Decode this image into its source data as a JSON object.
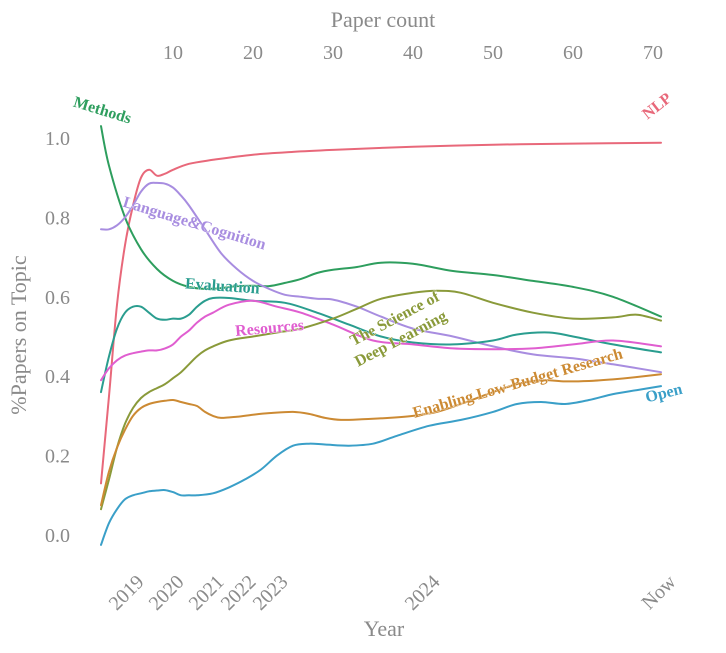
{
  "chart_data": {
    "type": "line",
    "top_axis": {
      "label": "Paper count",
      "ticks": [
        {
          "value": 10,
          "label": "10"
        },
        {
          "value": 20,
          "label": "20"
        },
        {
          "value": 30,
          "label": "30"
        },
        {
          "value": 40,
          "label": "40"
        },
        {
          "value": 50,
          "label": "50"
        },
        {
          "value": 60,
          "label": "60"
        },
        {
          "value": 70,
          "label": "70"
        }
      ]
    },
    "xlabel": "Year",
    "x_range": [
      1,
      71.5
    ],
    "x_ticks": [
      {
        "value": 5,
        "label": "2019"
      },
      {
        "value": 10,
        "label": "2020"
      },
      {
        "value": 15,
        "label": "2021"
      },
      {
        "value": 19,
        "label": "2022"
      },
      {
        "value": 23,
        "label": "2023"
      },
      {
        "value": 42,
        "label": "2024"
      },
      {
        "value": 71.5,
        "label": "Now"
      }
    ],
    "ylabel": "%Papers on Topic",
    "ylim": [
      -0.1,
      1.12
    ],
    "y_ticks": [
      {
        "value": 0.0,
        "label": "0.0"
      },
      {
        "value": 0.2,
        "label": "0.2"
      },
      {
        "value": 0.4,
        "label": "0.4"
      },
      {
        "value": 0.6,
        "label": "0.6"
      },
      {
        "value": 0.8,
        "label": "0.8"
      },
      {
        "value": 1.0,
        "label": "1.0"
      }
    ],
    "grid": false,
    "legend": "inline labels",
    "series": [
      {
        "name": "NLP",
        "color": "#e8687a",
        "x": [
          1,
          2,
          3,
          4,
          5,
          6,
          7,
          8,
          9,
          10,
          12,
          15,
          20,
          25,
          30,
          40,
          50,
          60,
          71
        ],
        "y": [
          0.13,
          0.35,
          0.58,
          0.73,
          0.83,
          0.9,
          0.92,
          0.905,
          0.91,
          0.92,
          0.935,
          0.945,
          0.958,
          0.965,
          0.97,
          0.978,
          0.983,
          0.986,
          0.988
        ]
      },
      {
        "name": "Methods",
        "color": "#2e9e5e",
        "x": [
          1,
          2,
          4,
          6,
          8,
          10,
          12,
          14,
          16,
          18,
          20,
          22,
          24,
          26,
          28,
          30,
          33,
          36,
          40,
          45,
          50,
          55,
          60,
          65,
          71
        ],
        "y": [
          1.03,
          0.93,
          0.8,
          0.72,
          0.67,
          0.64,
          0.625,
          0.62,
          0.622,
          0.627,
          0.628,
          0.627,
          0.635,
          0.645,
          0.66,
          0.668,
          0.675,
          0.686,
          0.683,
          0.665,
          0.655,
          0.64,
          0.625,
          0.6,
          0.55
        ]
      },
      {
        "name": "Language&Cognition",
        "color": "#a88de0",
        "x": [
          1,
          2,
          3,
          4,
          5,
          6,
          7,
          8,
          9,
          10,
          11,
          12,
          14,
          16,
          18,
          20,
          22,
          24,
          26,
          28,
          30,
          33,
          36,
          40,
          45,
          50,
          55,
          60,
          65,
          71
        ],
        "y": [
          0.77,
          0.77,
          0.78,
          0.8,
          0.83,
          0.865,
          0.885,
          0.887,
          0.885,
          0.875,
          0.855,
          0.83,
          0.77,
          0.71,
          0.67,
          0.64,
          0.62,
          0.605,
          0.6,
          0.595,
          0.593,
          0.575,
          0.55,
          0.52,
          0.5,
          0.475,
          0.455,
          0.445,
          0.43,
          0.41
        ]
      },
      {
        "name": "Evaluation",
        "color": "#2a9d8f",
        "x": [
          1,
          2,
          3,
          4,
          5,
          6,
          7,
          8,
          9,
          10,
          11,
          12,
          13,
          14,
          15,
          17,
          20,
          24,
          28,
          32,
          36,
          40,
          45,
          50,
          53,
          57,
          60,
          65,
          71
        ],
        "y": [
          0.36,
          0.45,
          0.52,
          0.56,
          0.575,
          0.575,
          0.56,
          0.545,
          0.542,
          0.545,
          0.545,
          0.555,
          0.575,
          0.59,
          0.597,
          0.597,
          0.59,
          0.585,
          0.56,
          0.53,
          0.5,
          0.485,
          0.48,
          0.49,
          0.505,
          0.51,
          0.5,
          0.48,
          0.46
        ]
      },
      {
        "name": "Resources",
        "color": "#e05ed0",
        "x": [
          1,
          2,
          3,
          4,
          5,
          6,
          7,
          8,
          9,
          10,
          11,
          12,
          13,
          14,
          15,
          17,
          20,
          23,
          26,
          30,
          35,
          40,
          45,
          50,
          55,
          60,
          65,
          71
        ],
        "y": [
          0.39,
          0.42,
          0.44,
          0.452,
          0.458,
          0.462,
          0.465,
          0.465,
          0.47,
          0.48,
          0.5,
          0.515,
          0.535,
          0.55,
          0.56,
          0.58,
          0.59,
          0.575,
          0.56,
          0.53,
          0.49,
          0.48,
          0.47,
          0.468,
          0.47,
          0.48,
          0.49,
          0.475
        ]
      },
      {
        "name": "The Science of Deep Learning",
        "color": "#8a9a3a",
        "x": [
          1,
          2,
          3,
          4,
          5,
          6,
          7,
          8,
          9,
          10,
          11,
          12,
          13,
          14,
          15,
          17,
          20,
          23,
          26,
          30,
          33,
          36,
          40,
          43,
          46,
          50,
          55,
          60,
          65,
          68,
          71
        ],
        "y": [
          0.065,
          0.14,
          0.22,
          0.28,
          0.32,
          0.345,
          0.36,
          0.37,
          0.38,
          0.395,
          0.41,
          0.43,
          0.45,
          0.465,
          0.475,
          0.49,
          0.5,
          0.51,
          0.52,
          0.545,
          0.57,
          0.595,
          0.61,
          0.615,
          0.61,
          0.585,
          0.56,
          0.545,
          0.548,
          0.555,
          0.54
        ]
      },
      {
        "name": "Enabling Low-Budget Research",
        "color": "#cc8a33",
        "x": [
          1,
          2,
          3,
          4,
          5,
          6,
          7,
          8,
          9,
          10,
          11,
          12,
          13,
          14,
          15,
          16,
          18,
          20,
          22,
          25,
          27,
          29,
          31,
          34,
          37,
          40,
          43,
          46,
          50,
          53,
          56,
          59,
          62,
          65,
          68,
          71
        ],
        "y": [
          0.075,
          0.16,
          0.22,
          0.265,
          0.3,
          0.32,
          0.33,
          0.335,
          0.338,
          0.34,
          0.335,
          0.33,
          0.325,
          0.31,
          0.3,
          0.295,
          0.298,
          0.303,
          0.307,
          0.31,
          0.305,
          0.295,
          0.29,
          0.292,
          0.295,
          0.3,
          0.31,
          0.33,
          0.36,
          0.38,
          0.39,
          0.387,
          0.388,
          0.392,
          0.398,
          0.405
        ]
      },
      {
        "name": "Open",
        "color": "#3a9fc8",
        "x": [
          1,
          2,
          3,
          4,
          5,
          6,
          7,
          8,
          9,
          10,
          11,
          12,
          13,
          15,
          17,
          19,
          21,
          23,
          25,
          27,
          29,
          32,
          35,
          38,
          42,
          46,
          50,
          53,
          56,
          59,
          62,
          65,
          68,
          71
        ],
        "y": [
          -0.025,
          0.03,
          0.065,
          0.09,
          0.1,
          0.105,
          0.11,
          0.112,
          0.113,
          0.108,
          0.1,
          0.1,
          0.1,
          0.105,
          0.12,
          0.14,
          0.165,
          0.2,
          0.225,
          0.23,
          0.228,
          0.225,
          0.23,
          0.25,
          0.275,
          0.29,
          0.31,
          0.33,
          0.335,
          0.33,
          0.34,
          0.355,
          0.365,
          0.375
        ]
      }
    ],
    "annotations": [
      {
        "series": "NLP",
        "text": "NLP"
      },
      {
        "series": "Methods",
        "text": "Methods"
      },
      {
        "series": "Language&Cognition",
        "text": "Language&Cognition"
      },
      {
        "series": "Evaluation",
        "text": "Evaluation"
      },
      {
        "series": "Resources",
        "text": "Resources"
      },
      {
        "series": "The Science of Deep Learning",
        "text": "The Science of"
      },
      {
        "series": "The Science of Deep Learning",
        "text": "Deep Learning"
      },
      {
        "series": "Enabling Low-Budget Research",
        "text": "Enabling Low-Budget Research"
      },
      {
        "series": "Open",
        "text": "Open"
      }
    ]
  }
}
